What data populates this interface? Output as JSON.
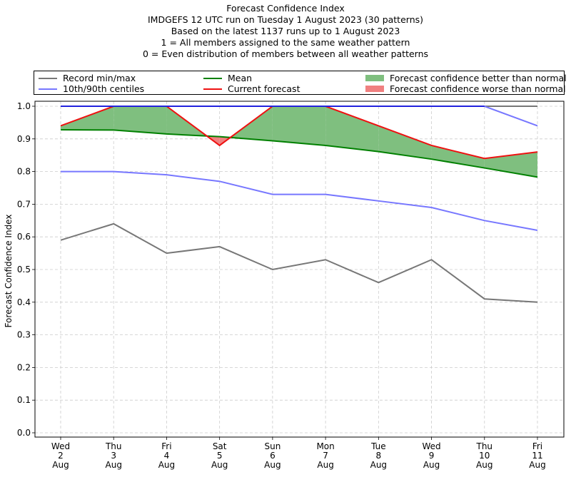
{
  "titles": {
    "line1": "Forecast Confidence Index",
    "line2": "IMDGEFS 12 UTC run on Tuesday 1 August 2023 (30 patterns)",
    "line3": "Based on the latest 1137 runs up to 1 August 2023",
    "line4": "1 = All members assigned to the same weather pattern",
    "line5": "0 = Even distribution of members between all weather patterns"
  },
  "legend": {
    "record": "Record min/max",
    "centiles": "10th/90th centiles",
    "mean": "Mean",
    "current": "Current forecast",
    "better": "Forecast confidence better than normal",
    "worse": "Forecast confidence worse than normal"
  },
  "colors": {
    "record": "#777777",
    "centiles": "#7777ff",
    "max_line": "#2222dd",
    "mean": "#008000",
    "current": "#ee1111",
    "better_fill": "#7fbf7f",
    "worse_fill": "#f08080"
  },
  "chart_data": {
    "type": "line",
    "ylabel": "Forecast Confidence Index",
    "ylim": [
      0,
      1
    ],
    "yticks": [
      "0.0",
      "0.1",
      "0.2",
      "0.3",
      "0.4",
      "0.5",
      "0.6",
      "0.7",
      "0.8",
      "0.9",
      "1.0"
    ],
    "grid": true,
    "legend_position": "top",
    "categories": [
      [
        "Wed",
        "2",
        "Aug"
      ],
      [
        "Thu",
        "3",
        "Aug"
      ],
      [
        "Fri",
        "4",
        "Aug"
      ],
      [
        "Sat",
        "5",
        "Aug"
      ],
      [
        "Sun",
        "6",
        "Aug"
      ],
      [
        "Mon",
        "7",
        "Aug"
      ],
      [
        "Tue",
        "8",
        "Aug"
      ],
      [
        "Wed",
        "9",
        "Aug"
      ],
      [
        "Thu",
        "10",
        "Aug"
      ],
      [
        "Fri",
        "11",
        "Aug"
      ]
    ],
    "series": [
      {
        "name": "Record min/max",
        "key": "record_min",
        "values": [
          0.59,
          0.64,
          0.55,
          0.57,
          0.5,
          0.53,
          0.46,
          0.53,
          0.41,
          0.4
        ]
      },
      {
        "name": "Record min/max",
        "key": "record_max",
        "values": [
          1.0,
          1.0,
          1.0,
          1.0,
          1.0,
          1.0,
          1.0,
          1.0,
          1.0,
          1.0
        ]
      },
      {
        "name": "10th/90th centiles",
        "key": "p10",
        "values": [
          0.8,
          0.8,
          0.79,
          0.77,
          0.73,
          0.73,
          0.71,
          0.69,
          0.65,
          0.62
        ]
      },
      {
        "name": "10th/90th centiles",
        "key": "p90",
        "values": [
          1.0,
          1.0,
          1.0,
          1.0,
          1.0,
          1.0,
          1.0,
          1.0,
          1.0,
          0.94
        ]
      },
      {
        "name": "Mean",
        "key": "mean",
        "values": [
          0.928,
          0.927,
          0.915,
          0.907,
          0.894,
          0.88,
          0.861,
          0.838,
          0.811,
          0.783
        ]
      },
      {
        "name": "Current forecast",
        "key": "current",
        "values": [
          0.94,
          1.0,
          1.0,
          0.88,
          1.0,
          1.0,
          0.94,
          0.88,
          0.84,
          0.86
        ]
      }
    ]
  }
}
